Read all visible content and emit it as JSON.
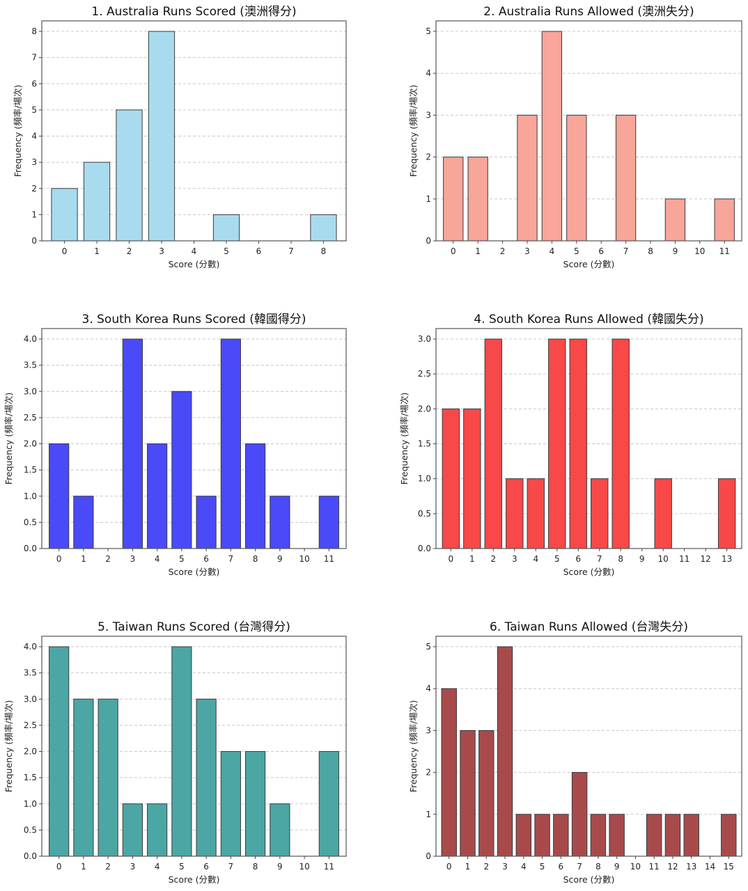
{
  "chart_data": [
    {
      "type": "bar",
      "title": "1. Australia Runs Scored (澳洲得分)",
      "xlabel": "Score (分數)",
      "ylabel": "Frequency (頻率/場次)",
      "categories": [
        "0",
        "1",
        "2",
        "3",
        "4",
        "5",
        "6",
        "7",
        "8"
      ],
      "values": [
        2,
        3,
        5,
        8,
        0,
        1,
        0,
        0,
        1
      ],
      "ylim": [
        0,
        8.4
      ],
      "yticks": [
        "0",
        "1",
        "2",
        "3",
        "4",
        "5",
        "6",
        "7",
        "8"
      ],
      "ytick_values": [
        0,
        1,
        2,
        3,
        4,
        5,
        6,
        7,
        8
      ],
      "color": "#a8dbee",
      "grid": true
    },
    {
      "type": "bar",
      "title": "2. Australia Runs Allowed (澳洲失分)",
      "xlabel": "Score (分數)",
      "ylabel": "Frequency (頻率/場次)",
      "categories": [
        "0",
        "1",
        "2",
        "3",
        "4",
        "5",
        "6",
        "7",
        "8",
        "9",
        "10",
        "11"
      ],
      "values": [
        2,
        2,
        0,
        3,
        5,
        3,
        0,
        3,
        0,
        1,
        0,
        1
      ],
      "ylim": [
        0,
        5.25
      ],
      "yticks": [
        "0",
        "1",
        "2",
        "3",
        "4",
        "5"
      ],
      "ytick_values": [
        0,
        1,
        2,
        3,
        4,
        5
      ],
      "color": "#f8a59a",
      "grid": true
    },
    {
      "type": "bar",
      "title": "3. South Korea Runs Scored (韓國得分)",
      "xlabel": "Score (分數)",
      "ylabel": "Frequency (頻率/場次)",
      "categories": [
        "0",
        "1",
        "2",
        "3",
        "4",
        "5",
        "6",
        "7",
        "8",
        "9",
        "10",
        "11"
      ],
      "values": [
        2,
        1,
        0,
        4,
        2,
        3,
        1,
        4,
        2,
        1,
        0,
        1
      ],
      "ylim": [
        0,
        4.2
      ],
      "yticks": [
        "0.0",
        "0.5",
        "1.0",
        "1.5",
        "2.0",
        "2.5",
        "3.0",
        "3.5",
        "4.0"
      ],
      "ytick_values": [
        0,
        0.5,
        1,
        1.5,
        2,
        2.5,
        3,
        3.5,
        4
      ],
      "color": "#4a4af8",
      "grid": true
    },
    {
      "type": "bar",
      "title": "4. South Korea Runs Allowed (韓國失分)",
      "xlabel": "Score (分數)",
      "ylabel": "Frequency (頻率/場次)",
      "categories": [
        "0",
        "1",
        "2",
        "3",
        "4",
        "5",
        "6",
        "7",
        "8",
        "9",
        "10",
        "11",
        "12",
        "13"
      ],
      "values": [
        2,
        2,
        3,
        1,
        1,
        3,
        3,
        1,
        3,
        0,
        1,
        0,
        0,
        1
      ],
      "ylim": [
        0,
        3.15
      ],
      "yticks": [
        "0.0",
        "0.5",
        "1.0",
        "1.5",
        "2.0",
        "2.5",
        "3.0"
      ],
      "ytick_values": [
        0,
        0.5,
        1,
        1.5,
        2,
        2.5,
        3
      ],
      "color": "#f84848",
      "grid": true
    },
    {
      "type": "bar",
      "title": "5. Taiwan Runs Scored (台灣得分)",
      "xlabel": "Score (分數)",
      "ylabel": "Frequency (頻率/場次)",
      "categories": [
        "0",
        "1",
        "2",
        "3",
        "4",
        "5",
        "6",
        "7",
        "8",
        "9",
        "10",
        "11"
      ],
      "values": [
        4,
        3,
        3,
        1,
        1,
        4,
        3,
        2,
        2,
        1,
        0,
        2
      ],
      "ylim": [
        0,
        4.2
      ],
      "yticks": [
        "0.0",
        "0.5",
        "1.0",
        "1.5",
        "2.0",
        "2.5",
        "3.0",
        "3.5",
        "4.0"
      ],
      "ytick_values": [
        0,
        0.5,
        1,
        1.5,
        2,
        2.5,
        3,
        3.5,
        4
      ],
      "color": "#4ca6a4",
      "grid": true
    },
    {
      "type": "bar",
      "title": "6. Taiwan Runs Allowed (台灣失分)",
      "xlabel": "Score (分數)",
      "ylabel": "Frequency (頻率/場次)",
      "categories": [
        "0",
        "1",
        "2",
        "3",
        "4",
        "5",
        "6",
        "7",
        "8",
        "9",
        "10",
        "11",
        "12",
        "13",
        "14",
        "15"
      ],
      "values": [
        4,
        3,
        3,
        5,
        1,
        1,
        1,
        2,
        1,
        1,
        0,
        1,
        1,
        1,
        0,
        1
      ],
      "ylim": [
        0,
        5.25
      ],
      "yticks": [
        "0",
        "1",
        "2",
        "3",
        "4",
        "5"
      ],
      "ytick_values": [
        0,
        1,
        2,
        3,
        4,
        5
      ],
      "color": "#a84a4c",
      "grid": true
    }
  ]
}
